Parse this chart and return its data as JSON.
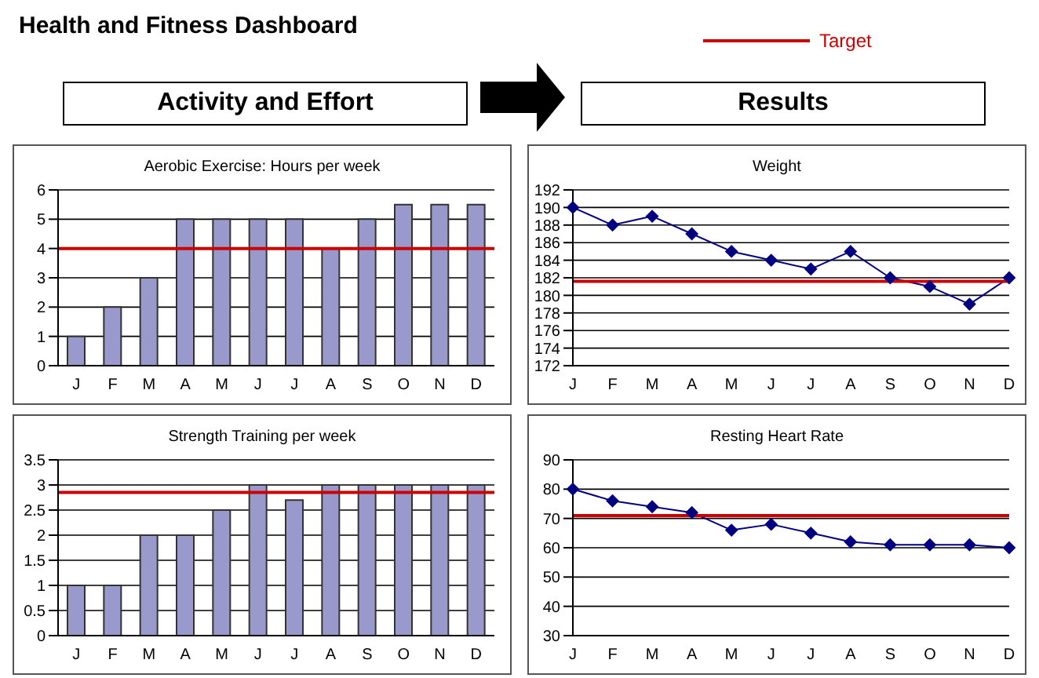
{
  "chart_data": [
    {
      "type": "other",
      "title": "Health and Fitness Dashboard",
      "annotations": [
        "Activity and Effort",
        "Results",
        "Target"
      ]
    },
    {
      "type": "bar",
      "title": "Aerobic Exercise: Hours per week",
      "categories": [
        "J",
        "F",
        "M",
        "A",
        "M",
        "J",
        "J",
        "A",
        "S",
        "O",
        "N",
        "D"
      ],
      "values": [
        1,
        2,
        3,
        5,
        5,
        5,
        5,
        4,
        5,
        5.5,
        5.5,
        5.5
      ],
      "color": "#9999cc",
      "ylim": [
        0,
        6
      ],
      "yticks": [
        0,
        1,
        2,
        3,
        4,
        5,
        6
      ],
      "grid": "y",
      "ref_lines": [
        {
          "axis": "y",
          "value": 4,
          "color": "#cc0000"
        }
      ]
    },
    {
      "type": "line",
      "title": "Weight",
      "categories": [
        "J",
        "F",
        "M",
        "A",
        "M",
        "J",
        "J",
        "A",
        "S",
        "O",
        "N",
        "D"
      ],
      "values": [
        190,
        188,
        189,
        187,
        185,
        184,
        183,
        185,
        182,
        181,
        179,
        182
      ],
      "color": "#000080",
      "marker": "diamond",
      "ylim": [
        172,
        192
      ],
      "yticks": [
        172,
        174,
        176,
        178,
        180,
        182,
        184,
        186,
        188,
        190,
        192
      ],
      "grid": "y",
      "ref_lines": [
        {
          "axis": "y",
          "value": 181.6,
          "color": "#cc0000"
        }
      ]
    },
    {
      "type": "bar",
      "title": "Strength  Training per week",
      "categories": [
        "J",
        "F",
        "M",
        "A",
        "M",
        "J",
        "J",
        "A",
        "S",
        "O",
        "N",
        "D"
      ],
      "values": [
        1,
        1,
        2,
        2,
        2.5,
        3,
        2.7,
        3,
        3,
        3,
        3,
        3
      ],
      "color": "#9999cc",
      "ylim": [
        0,
        3.5
      ],
      "yticks": [
        0,
        0.5,
        1,
        1.5,
        2,
        2.5,
        3,
        3.5
      ],
      "grid": "y",
      "ref_lines": [
        {
          "axis": "y",
          "value": 2.85,
          "color": "#cc0000"
        }
      ]
    },
    {
      "type": "line",
      "title": "Resting Heart Rate",
      "categories": [
        "J",
        "F",
        "M",
        "A",
        "M",
        "J",
        "J",
        "A",
        "S",
        "O",
        "N",
        "D"
      ],
      "values": [
        80,
        76,
        74,
        72,
        66,
        68,
        65,
        62,
        61,
        61,
        61,
        60
      ],
      "color": "#000080",
      "marker": "diamond",
      "ylim": [
        30,
        90
      ],
      "yticks": [
        30,
        40,
        50,
        60,
        70,
        80,
        90
      ],
      "grid": "y",
      "ref_lines": [
        {
          "axis": "y",
          "value": 71,
          "color": "#cc0000"
        }
      ]
    }
  ]
}
